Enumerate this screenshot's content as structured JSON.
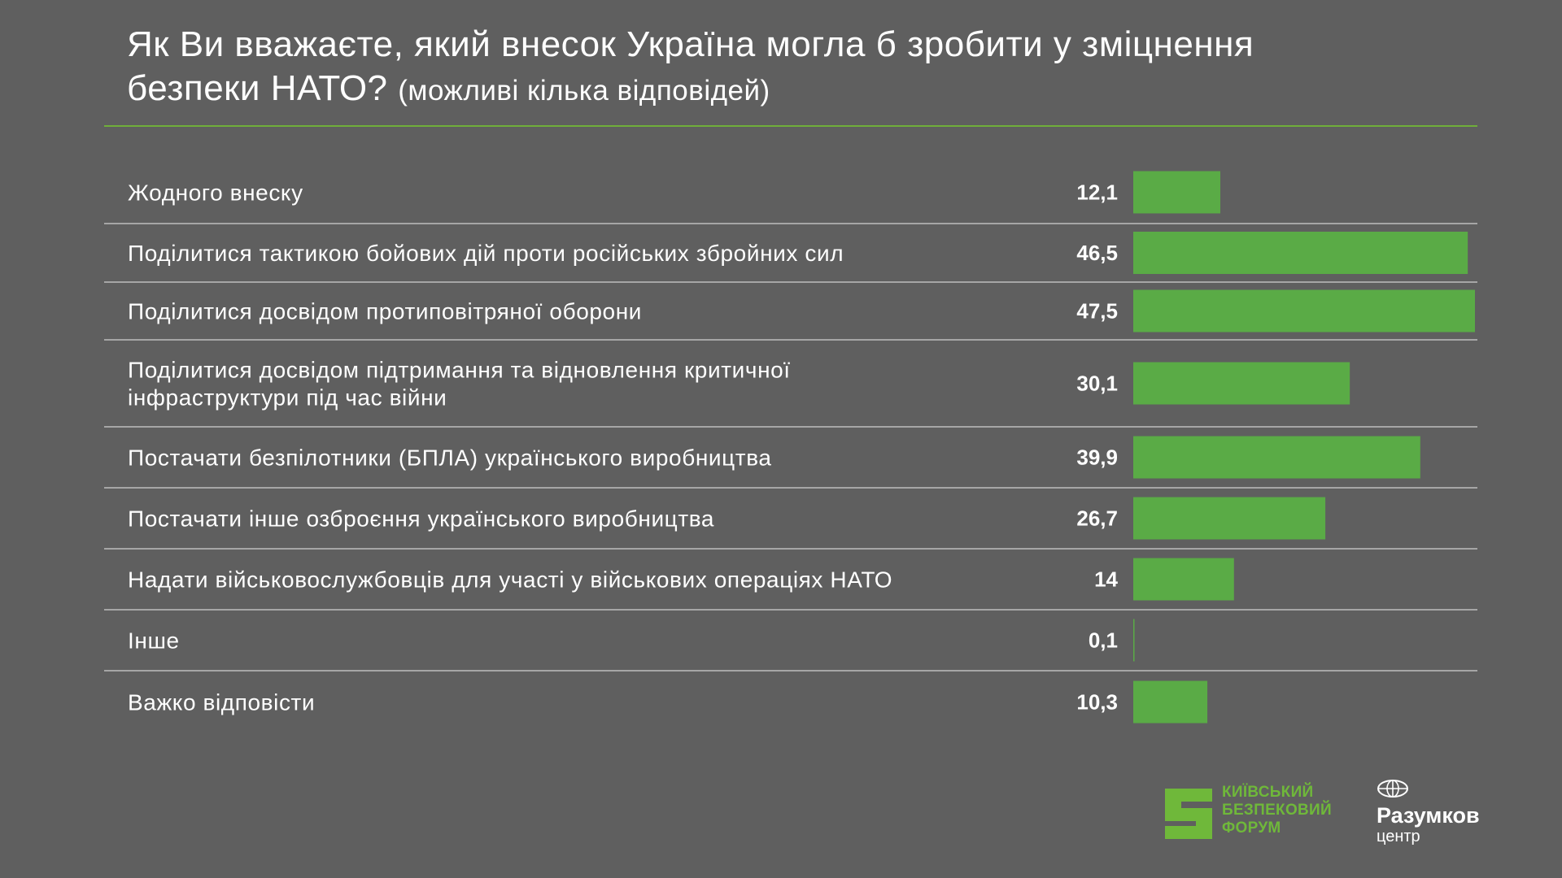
{
  "title": {
    "main": "Як Ви вважаєте, який внесок Україна могла б зробити у зміцнення безпеки НАТО?",
    "note": "(можливі кілька відповідей)"
  },
  "colors": {
    "background": "#5f5f5f",
    "bar": "#5aab46",
    "accent": "#6fae3a"
  },
  "chart_data": {
    "type": "bar",
    "orientation": "horizontal",
    "title": "Як Ви вважаєте, який внесок Україна могла б зробити у зміцнення безпеки НАТО? (можливі кілька відповідей)",
    "xlabel": "",
    "ylabel": "",
    "xlim": [
      0,
      47.5
    ],
    "grid": false,
    "categories": [
      [
        "Жодного внеску"
      ],
      [
        "Поділитися тактикою бойових дій проти російських збройних сил"
      ],
      [
        "Поділитися досвідом протиповітряної оборони"
      ],
      [
        "Поділитися досвідом підтримання та відновлення критичної",
        "інфраструктури під час війни"
      ],
      [
        "Постачати безпілотники (БПЛА) українського виробництва"
      ],
      [
        "Постачати інше озброєння українського виробництва"
      ],
      [
        "Надати військовослужбовців для участі у військових операціях НАТО"
      ],
      [
        "Інше"
      ],
      [
        "Важко відповісти"
      ]
    ],
    "values": [
      12.1,
      46.5,
      47.5,
      30.1,
      39.9,
      26.7,
      14,
      0.1,
      10.3
    ],
    "value_labels": [
      "12,1",
      "46,5",
      "47,5",
      "30,1",
      "39,9",
      "26,7",
      "14",
      "0,1",
      "10,3"
    ]
  },
  "logos": {
    "kbf": [
      "КИЇВСЬКИЙ",
      "БЕЗПЕКОВИЙ",
      "ФОРУМ"
    ],
    "kbf_icon": "kbf-s-icon",
    "razumkov_name": "Разумков",
    "razumkov_sub": "центр",
    "razumkov_icon": "globe-icon"
  }
}
